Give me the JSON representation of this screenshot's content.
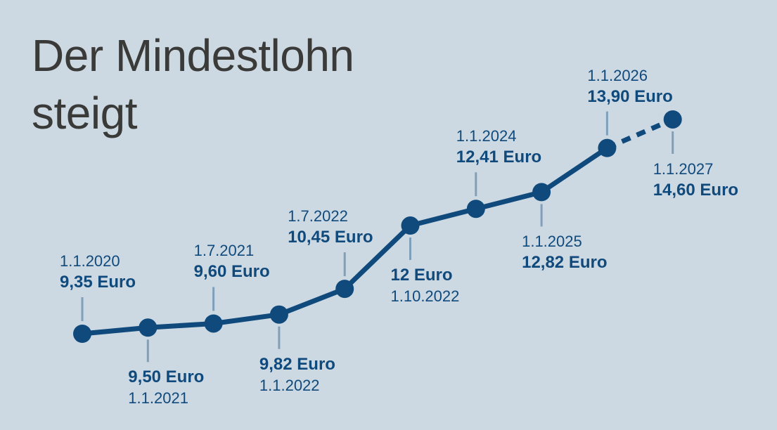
{
  "title": "Der Mindestlohn steigt",
  "colors": {
    "background": "#ccd9e2",
    "title_text": "#3a3a39",
    "line": "#104a7c",
    "dot": "#104a7c",
    "label_text": "#104a7c",
    "tick": "#7f9fbb"
  },
  "chart_data": {
    "type": "line",
    "title": "Der Mindestlohn steigt",
    "y_unit": "Euro",
    "ylim": [
      9.35,
      14.6
    ],
    "grid": false,
    "legend": false,
    "line_style": "solid with dashed final segment",
    "dashed_segment": {
      "from": "1.1.2026",
      "to": "1.1.2027"
    },
    "points": [
      {
        "date": "1.1.2020",
        "value": 9.35,
        "value_label": "9,35 Euro",
        "label_position": "above",
        "label_order": [
          "date",
          "value"
        ]
      },
      {
        "date": "1.1.2021",
        "value": 9.5,
        "value_label": "9,50 Euro",
        "label_position": "below",
        "label_order": [
          "value",
          "date"
        ]
      },
      {
        "date": "1.7.2021",
        "value": 9.6,
        "value_label": "9,60 Euro",
        "label_position": "above",
        "label_order": [
          "date",
          "value"
        ]
      },
      {
        "date": "1.1.2022",
        "value": 9.82,
        "value_label": "9,82 Euro",
        "label_position": "below",
        "label_order": [
          "value",
          "date"
        ]
      },
      {
        "date": "1.7.2022",
        "value": 10.45,
        "value_label": "10,45 Euro",
        "label_position": "above",
        "label_order": [
          "date",
          "value"
        ]
      },
      {
        "date": "1.10.2022",
        "value": 12.0,
        "value_label": "12 Euro",
        "label_position": "below",
        "label_order": [
          "value",
          "date"
        ]
      },
      {
        "date": "1.1.2024",
        "value": 12.41,
        "value_label": "12,41 Euro",
        "label_position": "above",
        "label_order": [
          "date",
          "value"
        ]
      },
      {
        "date": "1.1.2025",
        "value": 12.82,
        "value_label": "12,82 Euro",
        "label_position": "below",
        "label_order": [
          "date",
          "value"
        ]
      },
      {
        "date": "1.1.2026",
        "value": 13.9,
        "value_label": "13,90 Euro",
        "label_position": "above",
        "label_order": [
          "date",
          "value"
        ]
      },
      {
        "date": "1.1.2027",
        "value": 14.6,
        "value_label": "14,60 Euro",
        "label_position": "below",
        "label_order": [
          "date",
          "value"
        ],
        "projected": true
      }
    ]
  }
}
